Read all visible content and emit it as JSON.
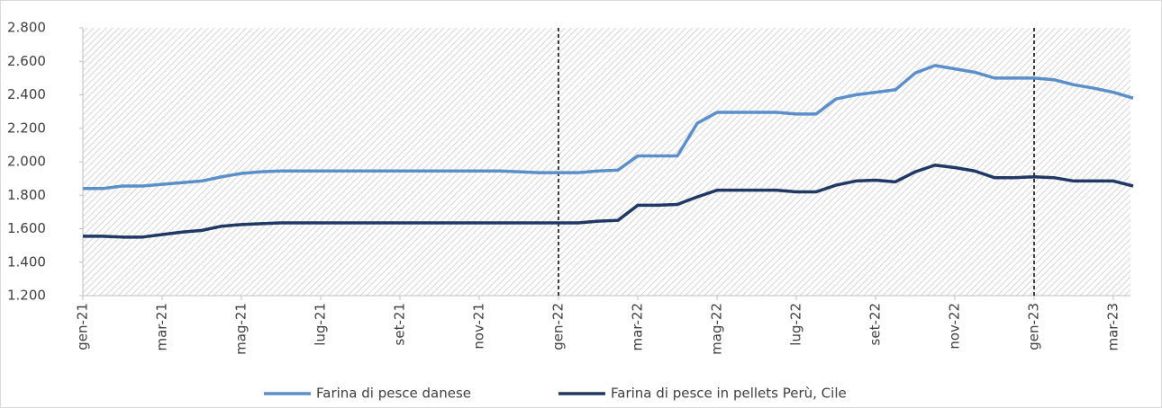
{
  "chart_data": {
    "type": "line",
    "categories": [
      "gen-21",
      null,
      null,
      null,
      "mar-21",
      null,
      null,
      null,
      "mag-21",
      null,
      null,
      null,
      "lug-21",
      null,
      null,
      null,
      "set-21",
      null,
      null,
      null,
      "nov-21",
      null,
      null,
      null,
      "gen-22",
      null,
      null,
      null,
      "mar-22",
      null,
      null,
      null,
      "mag-22",
      null,
      null,
      null,
      "lug-22",
      null,
      null,
      null,
      "set-22",
      null,
      null,
      null,
      "nov-22",
      null,
      null,
      null,
      "gen-23",
      null,
      null,
      null,
      "mar-23",
      null
    ],
    "series": [
      {
        "name": "Farina di pesce danese",
        "color": "#5b8fc9",
        "values": [
          1840,
          1840,
          1855,
          1855,
          1865,
          1875,
          1885,
          1910,
          1930,
          1940,
          1945,
          1945,
          1945,
          1945,
          1945,
          1945,
          1945,
          1945,
          1945,
          1945,
          1945,
          1945,
          1940,
          1935,
          1935,
          1935,
          1945,
          1950,
          2035,
          2035,
          2035,
          2230,
          2295,
          2295,
          2295,
          2295,
          2285,
          2285,
          2375,
          2400,
          2415,
          2430,
          2530,
          2575,
          2555,
          2535,
          2500,
          2500,
          2500,
          2490,
          2460,
          2440,
          2415,
          2380
        ]
      },
      {
        "name": "Farina di pesce in pellets Perù, Cile",
        "color": "#203864",
        "values": [
          1555,
          1555,
          1550,
          1550,
          1565,
          1580,
          1590,
          1615,
          1625,
          1630,
          1635,
          1635,
          1635,
          1635,
          1635,
          1635,
          1635,
          1635,
          1635,
          1635,
          1635,
          1635,
          1635,
          1635,
          1635,
          1635,
          1645,
          1650,
          1740,
          1740,
          1745,
          1790,
          1830,
          1830,
          1830,
          1830,
          1820,
          1820,
          1860,
          1885,
          1890,
          1880,
          1940,
          1980,
          1965,
          1945,
          1905,
          1905,
          1910,
          1905,
          1885,
          1885,
          1885,
          1855
        ]
      }
    ],
    "ylim": [
      1200,
      2800
    ],
    "yticks": [
      {
        "value": 1200,
        "label": "1.200"
      },
      {
        "value": 1400,
        "label": "1.400"
      },
      {
        "value": 1600,
        "label": "1.600"
      },
      {
        "value": 1800,
        "label": "1.800"
      },
      {
        "value": 2000,
        "label": "2.000"
      },
      {
        "value": 2200,
        "label": "2.200"
      },
      {
        "value": 2400,
        "label": "2.400"
      },
      {
        "value": 2600,
        "label": "2.600"
      },
      {
        "value": 2800,
        "label": "2.800"
      }
    ],
    "reference_lines": [
      24,
      48
    ],
    "legend": "bottom"
  }
}
